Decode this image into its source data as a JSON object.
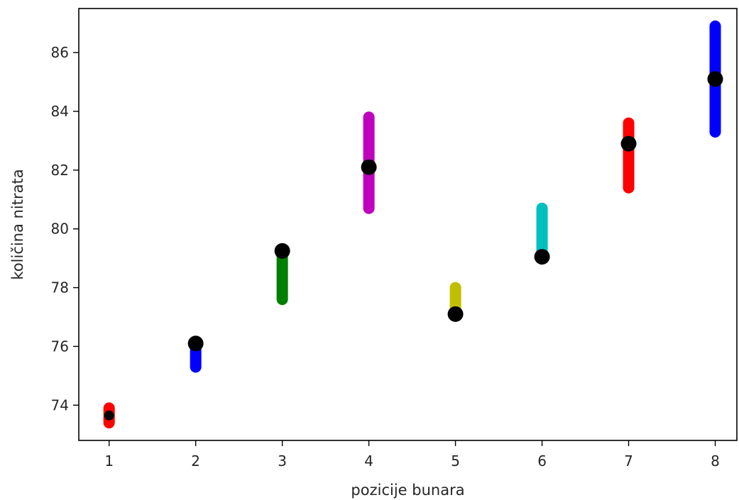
{
  "chart_data": {
    "type": "scatter",
    "xlabel": "pozicije bunara",
    "ylabel": "količina nitrata",
    "xlim": [
      0.65,
      8.25
    ],
    "ylim": [
      72.8,
      87.5
    ],
    "x_ticks": [
      1,
      2,
      3,
      4,
      5,
      6,
      7,
      8
    ],
    "y_ticks": [
      74,
      76,
      78,
      80,
      82,
      84,
      86
    ],
    "grid": false,
    "legend": "none",
    "marker_color": "#000000",
    "points": [
      {
        "x": 1,
        "y": 73.65,
        "range": [
          73.4,
          73.9
        ],
        "color": "#ff0000"
      },
      {
        "x": 2,
        "y": 76.1,
        "range": [
          75.3,
          76.1
        ],
        "color": "#0000ff"
      },
      {
        "x": 3,
        "y": 79.25,
        "range": [
          77.6,
          79.25
        ],
        "color": "#008000"
      },
      {
        "x": 4,
        "y": 82.1,
        "range": [
          80.7,
          83.8
        ],
        "color": "#bf00bf"
      },
      {
        "x": 5,
        "y": 77.1,
        "range": [
          77.1,
          78.0
        ],
        "color": "#bfbf00"
      },
      {
        "x": 6,
        "y": 79.05,
        "range": [
          79.05,
          80.7
        ],
        "color": "#00bfbf"
      },
      {
        "x": 7,
        "y": 82.9,
        "range": [
          81.4,
          83.6
        ],
        "color": "#ff0000"
      },
      {
        "x": 8,
        "y": 85.1,
        "range": [
          83.3,
          86.9
        ],
        "color": "#0000ff"
      }
    ]
  }
}
